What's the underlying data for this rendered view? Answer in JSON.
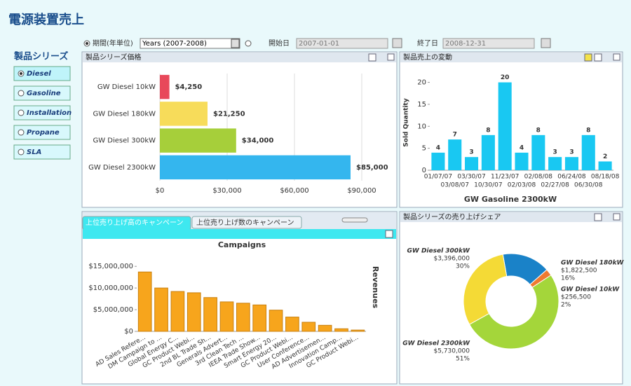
{
  "header": {
    "title": "電源装置売上"
  },
  "controls": {
    "period_label": "期間(年単位)",
    "period_select": "Years (2007-2008)",
    "start_label": "開始日",
    "start_date": "2007-01-01",
    "end_label": "終了日",
    "end_date": "2008-12-31"
  },
  "sidebar": {
    "title": "製品シリーズ",
    "items": [
      "Diesel",
      "Gasoline",
      "Installation",
      "Propane",
      "SLA"
    ]
  },
  "chart_data": [
    {
      "type": "hbar",
      "panel_title": "製品シリーズ価格",
      "categories": [
        "GW Diesel  10kW",
        "GW Diesel  180kW",
        "GW Diesel  300kW",
        "GW Diesel 2300kW"
      ],
      "values": [
        4250,
        21250,
        34000,
        85000
      ],
      "value_labels": [
        "$4,250",
        "$21,250",
        "$34,000",
        "$85,000"
      ],
      "colors": [
        "#e8485a",
        "#f7dc5a",
        "#a6cf3a",
        "#34b6ee"
      ],
      "xlim": [
        0,
        95000
      ],
      "xticks": [
        {
          "value": 0,
          "label": "$0"
        },
        {
          "value": 30000,
          "label": "$30,000"
        },
        {
          "value": 60000,
          "label": "$60,000"
        },
        {
          "value": 90000,
          "label": "$90,000"
        }
      ],
      "grid": true
    },
    {
      "type": "bar",
      "panel_title": "製品売上の変動",
      "title": "GW Gasoline 2300kW",
      "y_label": "Sold Quantity",
      "categories": [
        "01/07/07",
        "03/08/07",
        "03/30/07",
        "10/30/07",
        "11/23/07",
        "02/03/08",
        "02/08/08",
        "02/27/08",
        "06/24/08",
        "06/30/08",
        "08/18/08"
      ],
      "values": [
        4,
        7,
        3,
        8,
        20,
        4,
        8,
        3,
        3,
        8,
        2
      ],
      "color": "#19c8f2",
      "ylim": [
        0,
        22
      ],
      "yticks": [
        0,
        5,
        10,
        15,
        20
      ],
      "grid": false
    },
    {
      "type": "bar",
      "tabs": [
        "上位売り上げ高のキャンペーン",
        "上位売り上げ数のキャンペーン"
      ],
      "title": "Campaigns",
      "y_label": "Revenues",
      "categories": [
        "AD Sales Refere...",
        "DM Campaign to ...",
        "Global Energy C...",
        "GC Product Webi...",
        "2nd BL Trade Sh...",
        "Generals Advert...",
        "3rd Clean Tech ...",
        "IEEA Trade Show...",
        "Smart Energy 20...",
        "GC Product Webi...",
        "User Conference...",
        "AD Advertisemen...",
        "Innovation Camp...",
        "GC Product Webi..."
      ],
      "values": [
        13700000,
        10000000,
        9200000,
        8900000,
        7800000,
        6800000,
        6500000,
        6100000,
        4900000,
        3300000,
        2100000,
        1400000,
        600000,
        300000
      ],
      "color": "#f7a51c",
      "ylim": [
        0,
        16000000
      ],
      "yticks": [
        {
          "value": 0,
          "label": "$0"
        },
        {
          "value": 5000000,
          "label": "$5,000,000"
        },
        {
          "value": 10000000,
          "label": "$10,000,000"
        },
        {
          "value": 15000000,
          "label": "$15,000,000"
        }
      ],
      "grid": false
    },
    {
      "type": "donut",
      "panel_title": "製品シリーズの売り上げシェア",
      "categories": [
        "GW Diesel  180kW",
        "GW Diesel  10kW",
        "GW Diesel 2300kW",
        "GW Diesel  300kW"
      ],
      "values": [
        1822500,
        256500,
        5730000,
        3396000
      ],
      "value_labels": [
        "$1,822,500",
        "$256,500",
        "$5,730,000",
        "$3,396,000"
      ],
      "percent_labels": [
        "16%",
        "2%",
        "51%",
        "30%"
      ],
      "colors": [
        "#1a82c8",
        "#f07a30",
        "#a4d63a",
        "#f4da36"
      ]
    }
  ]
}
